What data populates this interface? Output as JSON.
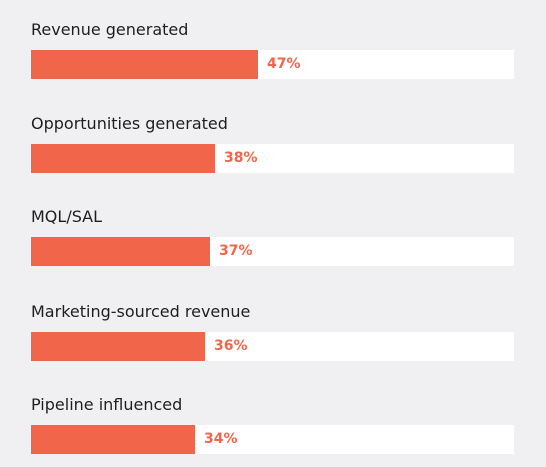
{
  "chart_data": {
    "type": "bar",
    "orientation": "horizontal",
    "categories": [
      "Revenue generated",
      "Opportunities generated",
      "MQL/SAL",
      "Marketing-sourced revenue",
      "Pipeline influenced"
    ],
    "values": [
      47,
      38,
      37,
      36,
      34
    ],
    "value_labels": [
      "47%",
      "38%",
      "37%",
      "36%",
      "34%"
    ],
    "unit": "%",
    "xlim": [
      0,
      100
    ],
    "grid": false,
    "colors": {
      "bar": "#f1664a",
      "track": "#ffffff",
      "background": "#f0f0f2",
      "label": "#1e1e1e",
      "value": "#f1664a"
    }
  }
}
